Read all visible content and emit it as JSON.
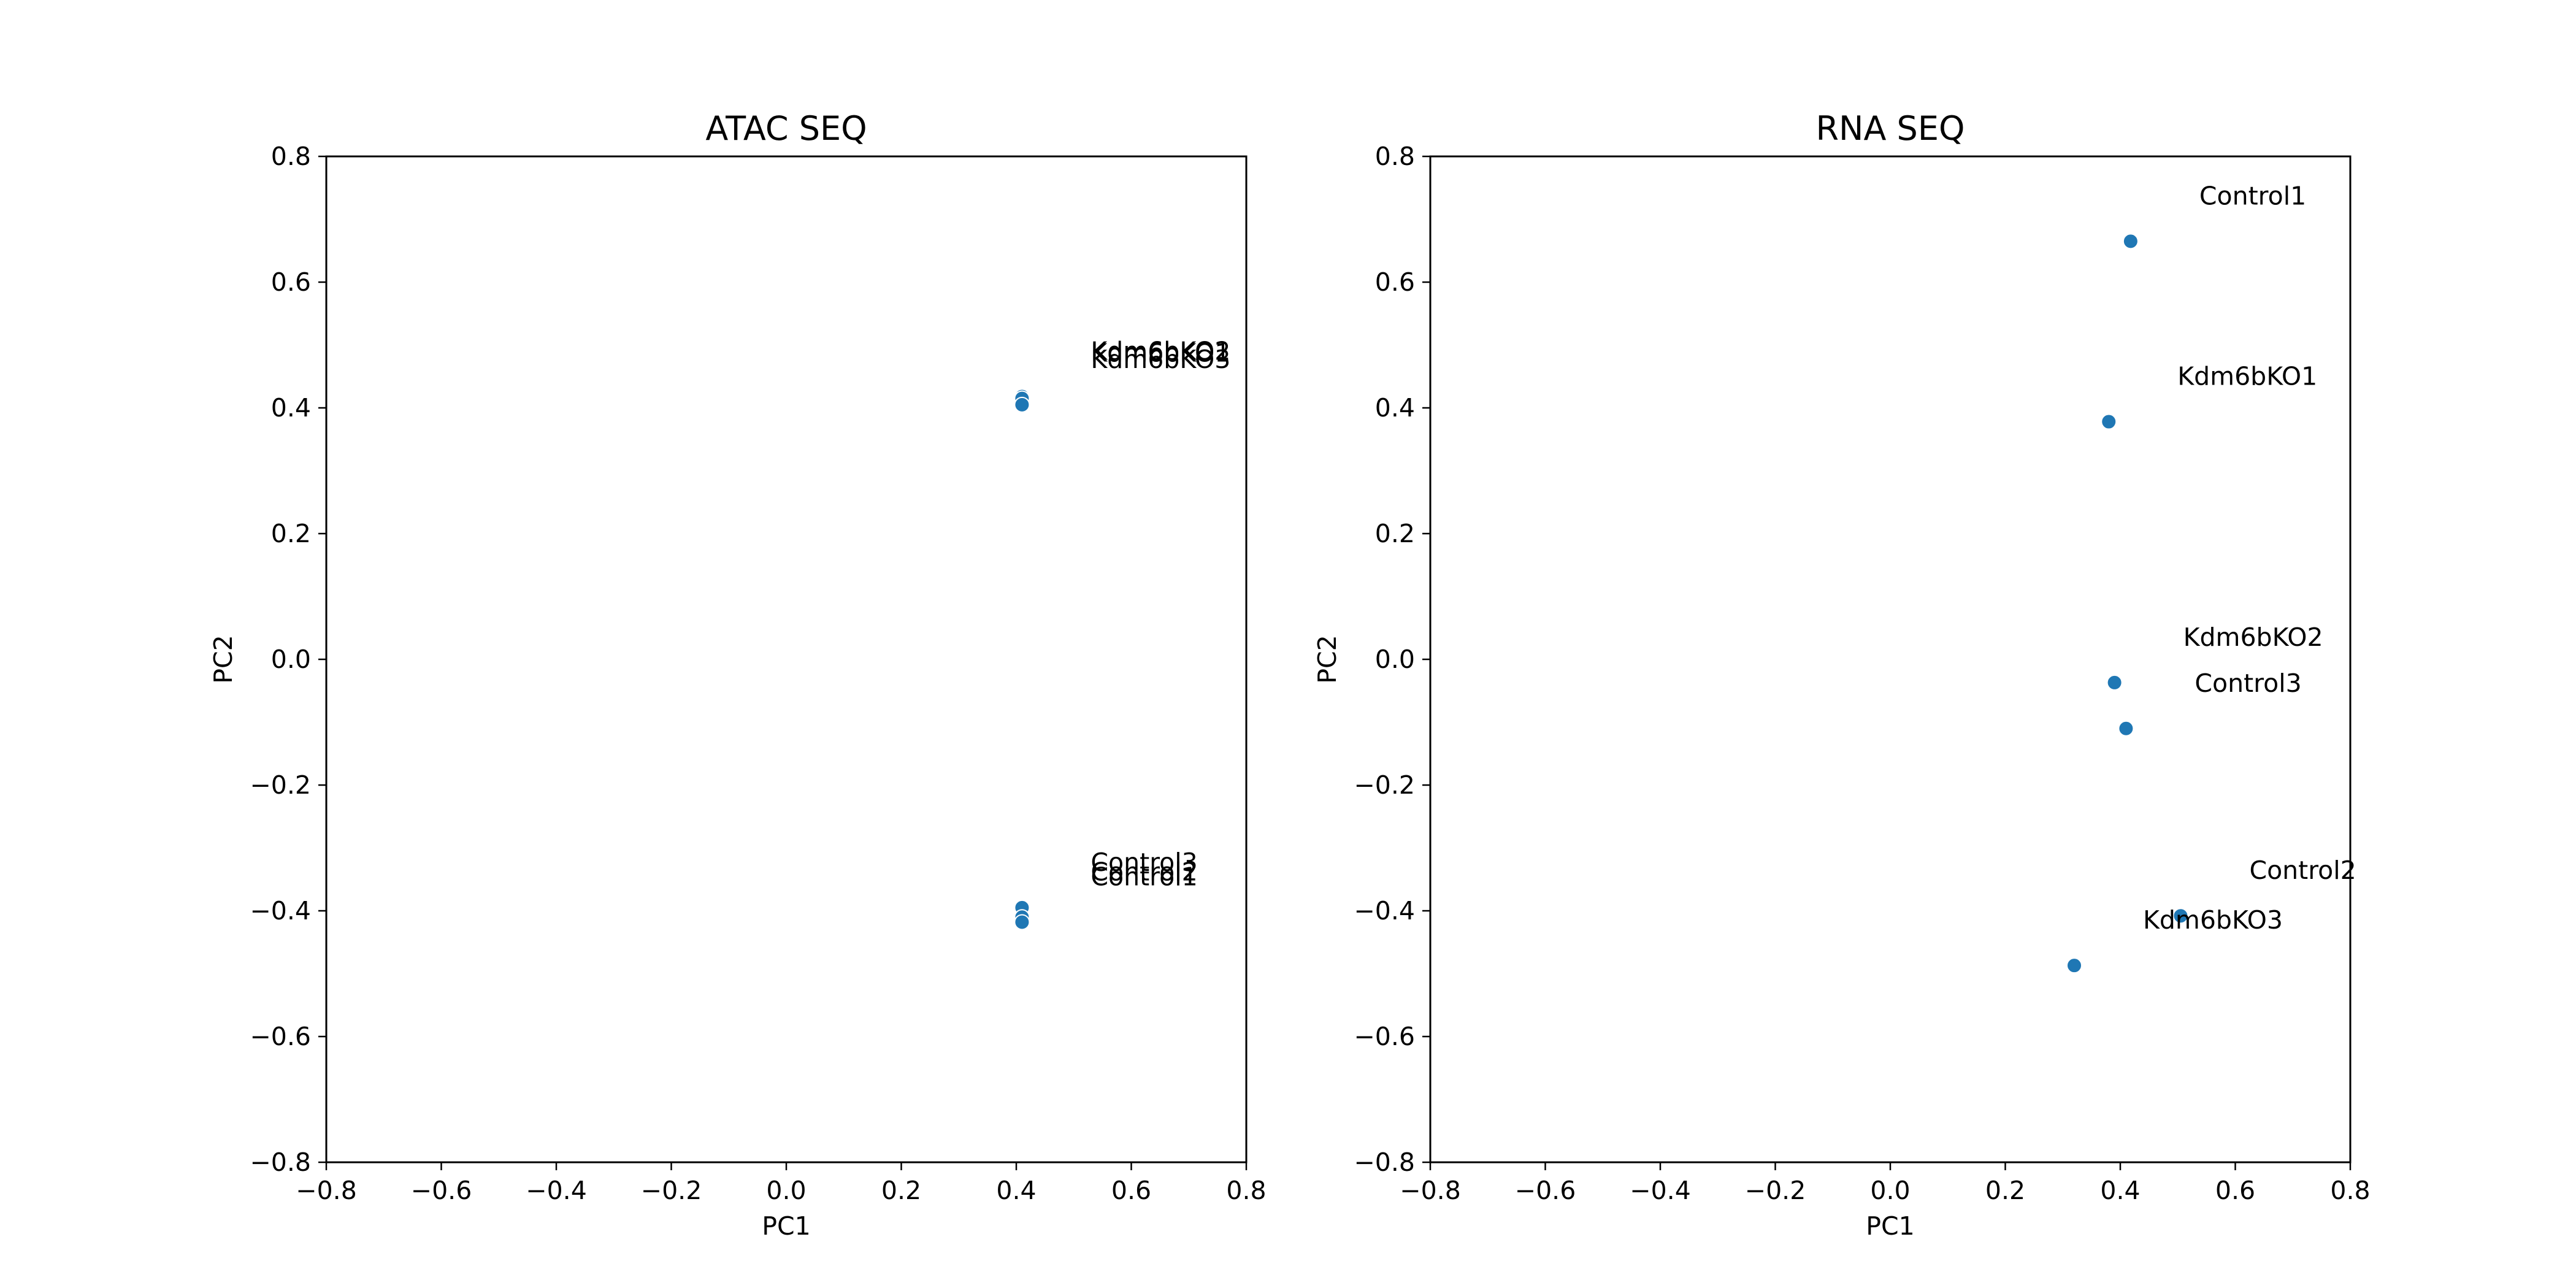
{
  "colors": {
    "point": "#1f77b4",
    "axis": "#000000",
    "background": "#ffffff"
  },
  "chart_data": [
    {
      "type": "scatter",
      "title": "ATAC SEQ",
      "xlabel": "PC1",
      "ylabel": "PC2",
      "xlim": [
        -0.8,
        0.8
      ],
      "ylim": [
        -0.8,
        0.8
      ],
      "xticks": [
        -0.8,
        -0.6,
        -0.4,
        -0.2,
        0.0,
        0.2,
        0.4,
        0.6,
        0.8
      ],
      "yticks": [
        -0.8,
        -0.6,
        -0.4,
        -0.2,
        0.0,
        0.2,
        0.4,
        0.6,
        0.8
      ],
      "xtick_labels": [
        "−0.8",
        "−0.6",
        "−0.4",
        "−0.2",
        "0.0",
        "0.2",
        "0.4",
        "0.6",
        "0.8"
      ],
      "ytick_labels": [
        "−0.8",
        "−0.6",
        "−0.4",
        "−0.2",
        "0.0",
        "0.2",
        "0.4",
        "0.6",
        "0.8"
      ],
      "grid": false,
      "points": [
        {
          "label": "Kdm6bKO2",
          "x": 0.41,
          "y": 0.418
        },
        {
          "label": "Kdm6bKO1",
          "x": 0.41,
          "y": 0.415
        },
        {
          "label": "Kdm6bKO3",
          "x": 0.41,
          "y": 0.405
        },
        {
          "label": "Control3",
          "x": 0.41,
          "y": -0.395
        },
        {
          "label": "Control2",
          "x": 0.41,
          "y": -0.41
        },
        {
          "label": "Control1",
          "x": 0.41,
          "y": -0.418
        }
      ]
    },
    {
      "type": "scatter",
      "title": "RNA SEQ",
      "xlabel": "PC1",
      "ylabel": "PC2",
      "xlim": [
        -0.8,
        0.8
      ],
      "ylim": [
        -0.8,
        0.8
      ],
      "xticks": [
        -0.8,
        -0.6,
        -0.4,
        -0.2,
        0.0,
        0.2,
        0.4,
        0.6,
        0.8
      ],
      "yticks": [
        -0.8,
        -0.6,
        -0.4,
        -0.2,
        0.0,
        0.2,
        0.4,
        0.6,
        0.8
      ],
      "xtick_labels": [
        "−0.8",
        "−0.6",
        "−0.4",
        "−0.2",
        "0.0",
        "0.2",
        "0.4",
        "0.6",
        "0.8"
      ],
      "ytick_labels": [
        "−0.8",
        "−0.6",
        "−0.4",
        "−0.2",
        "0.0",
        "0.2",
        "0.4",
        "0.6",
        "0.8"
      ],
      "grid": false,
      "points": [
        {
          "label": "Control1",
          "x": 0.418,
          "y": 0.665
        },
        {
          "label": "Kdm6bKO1",
          "x": 0.38,
          "y": 0.378
        },
        {
          "label": "Kdm6bKO2",
          "x": 0.39,
          "y": -0.037
        },
        {
          "label": "Control3",
          "x": 0.41,
          "y": -0.11
        },
        {
          "label": "Control2",
          "x": 0.505,
          "y": -0.408
        },
        {
          "label": "Kdm6bKO3",
          "x": 0.32,
          "y": -0.487
        }
      ]
    }
  ]
}
